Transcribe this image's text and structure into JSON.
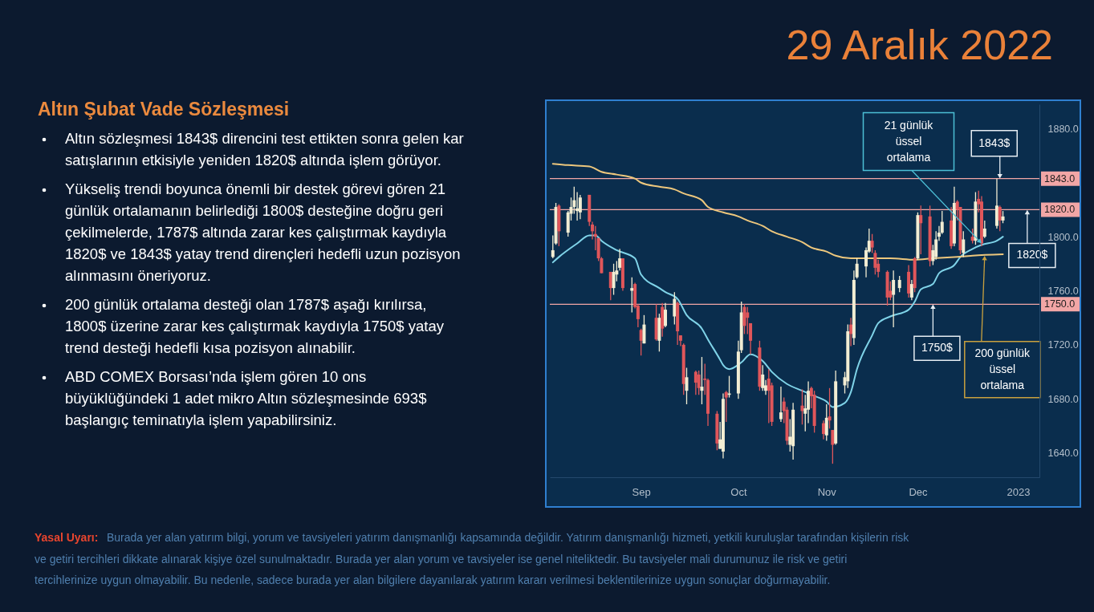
{
  "chart_data": {
    "type": "candlestick",
    "title": "Altın Şubat Vade Sözleşmesi",
    "subtitle": "29 Aralık 2022",
    "x": [
      "2022-08-03",
      "2022-08-04",
      "2022-08-05",
      "2022-08-08",
      "2022-08-09",
      "2022-08-10",
      "2022-08-11",
      "2022-08-12",
      "2022-08-15",
      "2022-08-16",
      "2022-08-17",
      "2022-08-18",
      "2022-08-19",
      "2022-08-22",
      "2022-08-23",
      "2022-08-24",
      "2022-08-25",
      "2022-08-26",
      "2022-08-29",
      "2022-08-30",
      "2022-08-31",
      "2022-09-01",
      "2022-09-02",
      "2022-09-06",
      "2022-09-07",
      "2022-09-08",
      "2022-09-09",
      "2022-09-12",
      "2022-09-13",
      "2022-09-14",
      "2022-09-15",
      "2022-09-16",
      "2022-09-19",
      "2022-09-20",
      "2022-09-21",
      "2022-09-22",
      "2022-09-23",
      "2022-09-26",
      "2022-09-27",
      "2022-09-28",
      "2022-09-29",
      "2022-09-30",
      "2022-10-03",
      "2022-10-04",
      "2022-10-05",
      "2022-10-06",
      "2022-10-07",
      "2022-10-10",
      "2022-10-11",
      "2022-10-12",
      "2022-10-13",
      "2022-10-14",
      "2022-10-17",
      "2022-10-18",
      "2022-10-19",
      "2022-10-20",
      "2022-10-21",
      "2022-10-24",
      "2022-10-25",
      "2022-10-26",
      "2022-10-27",
      "2022-10-28",
      "2022-10-31",
      "2022-11-01",
      "2022-11-02",
      "2022-11-03",
      "2022-11-04",
      "2022-11-07",
      "2022-11-08",
      "2022-11-09",
      "2022-11-10",
      "2022-11-11",
      "2022-11-14",
      "2022-11-15",
      "2022-11-16",
      "2022-11-17",
      "2022-11-18",
      "2022-11-21",
      "2022-11-22",
      "2022-11-23",
      "2022-11-25",
      "2022-11-28",
      "2022-11-29",
      "2022-11-30",
      "2022-12-01",
      "2022-12-02",
      "2022-12-05",
      "2022-12-06",
      "2022-12-07",
      "2022-12-08",
      "2022-12-09",
      "2022-12-12",
      "2022-12-13",
      "2022-12-14",
      "2022-12-15",
      "2022-12-16",
      "2022-12-19",
      "2022-12-20",
      "2022-12-21",
      "2022-12-22",
      "2022-12-23",
      "2022-12-27",
      "2022-12-28",
      "2022-12-29"
    ],
    "ohlc": [
      [
        1785,
        1801,
        1784,
        1790
      ],
      [
        1795,
        1825,
        1794,
        1822
      ],
      [
        1823,
        1824,
        1793,
        1804
      ],
      [
        1803,
        1819,
        1800,
        1818
      ],
      [
        1817,
        1829,
        1812,
        1822
      ],
      [
        1822,
        1837,
        1817,
        1827
      ],
      [
        1819,
        1833,
        1812,
        1821
      ],
      [
        1818,
        1831,
        1813,
        1829
      ],
      [
        1831,
        1831,
        1808,
        1811
      ],
      [
        1809,
        1811,
        1798,
        1804
      ],
      [
        1802,
        1808,
        1790,
        1800
      ],
      [
        1799,
        1799,
        1782,
        1784
      ],
      [
        1784,
        1785,
        1773,
        1773
      ],
      [
        1774,
        1774,
        1753,
        1762
      ],
      [
        1762,
        1780,
        1757,
        1774
      ],
      [
        1772,
        1782,
        1767,
        1775
      ],
      [
        1777,
        1791,
        1775,
        1784
      ],
      [
        1784,
        1784,
        1760,
        1762
      ],
      [
        1760,
        1770,
        1744,
        1762
      ],
      [
        1765,
        1766,
        1747,
        1748
      ],
      [
        1749,
        1750,
        1733,
        1739
      ],
      [
        1731,
        1732,
        1712,
        1723
      ],
      [
        1721,
        1742,
        1721,
        1735
      ],
      [
        1740,
        1750,
        1723,
        1724
      ],
      [
        1723,
        1743,
        1715,
        1740
      ],
      [
        1748,
        1751,
        1726,
        1732
      ],
      [
        1734,
        1751,
        1733,
        1746
      ],
      [
        1741,
        1759,
        1735,
        1754
      ],
      [
        1751,
        1752,
        1720,
        1730
      ],
      [
        1727,
        1727,
        1719,
        1723
      ],
      [
        1720,
        1721,
        1683,
        1691
      ],
      [
        1686,
        1703,
        1676,
        1696
      ],
      [
        1700,
        1701,
        1683,
        1692
      ],
      [
        1698,
        1701,
        1683,
        1688
      ],
      [
        1686,
        1711,
        1676,
        1689
      ],
      [
        1695,
        1706,
        1683,
        1694
      ],
      [
        1694,
        1695,
        1660,
        1669
      ],
      [
        1669,
        1671,
        1642,
        1647
      ],
      [
        1643,
        1663,
        1643,
        1650
      ],
      [
        1641,
        1684,
        1636,
        1680
      ],
      [
        1685,
        1686,
        1663,
        1681
      ],
      [
        1683,
        1697,
        1681,
        1684
      ],
      [
        1684,
        1723,
        1680,
        1715
      ],
      [
        1716,
        1752,
        1714,
        1744
      ],
      [
        1748,
        1750,
        1728,
        1734
      ],
      [
        1744,
        1748,
        1728,
        1740
      ],
      [
        1736,
        1736,
        1713,
        1723
      ],
      [
        1718,
        1723,
        1686,
        1689
      ],
      [
        1688,
        1705,
        1686,
        1698
      ],
      [
        1686,
        1694,
        1683,
        1690
      ],
      [
        1695,
        1702,
        1662,
        1686
      ],
      [
        1690,
        1692,
        1660,
        1663
      ],
      [
        1665,
        1689,
        1663,
        1670
      ],
      [
        1678,
        1681,
        1662,
        1671
      ],
      [
        1672,
        1674,
        1646,
        1649
      ],
      [
        1646,
        1665,
        1641,
        1652
      ],
      [
        1645,
        1677,
        1635,
        1672
      ],
      [
        1675,
        1687,
        1661,
        1671
      ],
      [
        1669,
        1683,
        1656,
        1673
      ],
      [
        1672,
        1693,
        1662,
        1686
      ],
      [
        1688,
        1689,
        1673,
        1682
      ],
      [
        1683,
        1686,
        1655,
        1660
      ],
      [
        1662,
        1664,
        1650,
        1654
      ],
      [
        1653,
        1676,
        1649,
        1666
      ],
      [
        1667,
        1688,
        1658,
        1664
      ],
      [
        1657,
        1657,
        1632,
        1646
      ],
      [
        1647,
        1701,
        1646,
        1693
      ],
      [
        1690,
        1700,
        1684,
        1696
      ],
      [
        1693,
        1735,
        1688,
        1730
      ],
      [
        1735,
        1740,
        1719,
        1728
      ],
      [
        1725,
        1775,
        1720,
        1768
      ],
      [
        1770,
        1784,
        1769,
        1780
      ],
      [
        1778,
        1792,
        1770,
        1790
      ],
      [
        1789,
        1806,
        1788,
        1797
      ],
      [
        1797,
        1802,
        1788,
        1792
      ],
      [
        1788,
        1790,
        1772,
        1777
      ],
      [
        1780,
        1783,
        1770,
        1774
      ],
      [
        1774,
        1775,
        1749,
        1755
      ],
      [
        1760,
        1767,
        1753,
        1755
      ],
      [
        1757,
        1775,
        1733,
        1768
      ],
      [
        1762,
        1771,
        1759,
        1768
      ],
      [
        1774,
        1779,
        1755,
        1758
      ],
      [
        1755,
        1768,
        1753,
        1765
      ],
      [
        1784,
        1785,
        1759,
        1762
      ],
      [
        1784,
        1818,
        1783,
        1816
      ],
      [
        1816,
        1823,
        1787,
        1810
      ],
      [
        1815,
        1823,
        1778,
        1782
      ],
      [
        1782,
        1794,
        1779,
        1790
      ],
      [
        1785,
        1804,
        1783,
        1798
      ],
      [
        1800,
        1808,
        1797,
        1803
      ],
      [
        1803,
        1819,
        1802,
        1811
      ],
      [
        1812,
        1822,
        1791,
        1793
      ],
      [
        1795,
        1837,
        1793,
        1825
      ],
      [
        1826,
        1827,
        1812,
        1820
      ],
      [
        1822,
        1822,
        1787,
        1790
      ],
      [
        1788,
        1804,
        1785,
        1798
      ],
      [
        1800,
        1806,
        1795,
        1797
      ],
      [
        1797,
        1833,
        1794,
        1826
      ],
      [
        1828,
        1834,
        1818,
        1824
      ],
      [
        1826,
        1830,
        1793,
        1795
      ],
      [
        1800,
        1812,
        1799,
        1806
      ],
      [
        1808,
        1843,
        1806,
        1823
      ],
      [
        1822,
        1823,
        1804,
        1812
      ],
      [
        1812,
        1819,
        1810,
        1815
      ]
    ],
    "colors": [
      "#f2edd3",
      "#f2edd3",
      "#e0565a",
      "#f2edd3",
      "#f2edd3",
      "#f2edd3",
      "#f2edd3",
      "#f2edd3",
      "#e0565a",
      "#e0565a",
      "#e0565a",
      "#e0565a",
      "#e0565a",
      "#e0565a",
      "#f2edd3",
      "#f2edd3",
      "#f2edd3",
      "#e0565a",
      "#f2edd3",
      "#e0565a",
      "#e0565a",
      "#e0565a",
      "#f2edd3",
      "#e0565a",
      "#f2edd3",
      "#e0565a",
      "#f2edd3",
      "#f2edd3",
      "#e0565a",
      "#e0565a",
      "#e0565a",
      "#f2edd3",
      "#e0565a",
      "#e0565a",
      "#f2edd3",
      "#e0565a",
      "#e0565a",
      "#e0565a",
      "#f2edd3",
      "#f2edd3",
      "#e0565a",
      "#f2edd3",
      "#f2edd3",
      "#f2edd3",
      "#e0565a",
      "#e0565a",
      "#e0565a",
      "#e0565a",
      "#f2edd3",
      "#f2edd3",
      "#e0565a",
      "#e0565a",
      "#f2edd3",
      "#e0565a",
      "#e0565a",
      "#f2edd3",
      "#f2edd3",
      "#e0565a",
      "#f2edd3",
      "#f2edd3",
      "#e0565a",
      "#e0565a",
      "#e0565a",
      "#f2edd3",
      "#e0565a",
      "#e0565a",
      "#f2edd3",
      "#f2edd3",
      "#f2edd3",
      "#e0565a",
      "#f2edd3",
      "#f2edd3",
      "#f2edd3",
      "#f2edd3",
      "#e0565a",
      "#e0565a",
      "#e0565a",
      "#e0565a",
      "#e0565a",
      "#f2edd3",
      "#f2edd3",
      "#e0565a",
      "#f2edd3",
      "#e0565a",
      "#f2edd3",
      "#e0565a",
      "#e0565a",
      "#f2edd3",
      "#f2edd3",
      "#f2edd3",
      "#f2edd3",
      "#e0565a",
      "#f2edd3",
      "#e0565a",
      "#e0565a",
      "#f2edd3",
      "#e0565a",
      "#f2edd3",
      "#e0565a",
      "#e0565a",
      "#f2edd3",
      "#f2edd3",
      "#e0565a",
      "#f2edd3"
    ],
    "series": [
      {
        "type": "line",
        "color": "#7fd3e8",
        "x": [
          "2022-08-03",
          "2022-08-05",
          "2022-08-11",
          "2022-08-15",
          "2022-08-17",
          "2022-08-19",
          "2022-08-24",
          "2022-08-30",
          "2022-09-01",
          "2022-09-07",
          "2022-09-09",
          "2022-09-13",
          "2022-09-16",
          "2022-09-21",
          "2022-09-23",
          "2022-09-27",
          "2022-09-28",
          "2022-09-30",
          "2022-10-04",
          "2022-10-07",
          "2022-10-11",
          "2022-10-14",
          "2022-10-19",
          "2022-10-24",
          "2022-10-27",
          "2022-11-01",
          "2022-11-03",
          "2022-11-07",
          "2022-11-09",
          "2022-11-11",
          "2022-11-16",
          "2022-11-18",
          "2022-11-22",
          "2022-11-28",
          "2022-11-30",
          "2022-12-02",
          "2022-12-06",
          "2022-12-08",
          "2022-12-13",
          "2022-12-15",
          "2022-12-19",
          "2022-12-22",
          "2022-12-27",
          "2022-12-29"
        ],
        "values": [
          1781,
          1785,
          1795,
          1801,
          1801,
          1797,
          1790,
          1784,
          1772,
          1762,
          1759,
          1754,
          1742,
          1732,
          1724,
          1709,
          1705,
          1702,
          1707,
          1713,
          1708,
          1700,
          1691,
          1686,
          1683,
          1678,
          1674,
          1677,
          1685,
          1702,
          1727,
          1736,
          1741,
          1746,
          1752,
          1761,
          1765,
          1773,
          1779,
          1785,
          1791,
          1794,
          1797,
          1800
        ]
      },
      {
        "type": "line",
        "color": "#edc77d",
        "x": [
          "2022-08-03",
          "2022-08-08",
          "2022-08-15",
          "2022-08-19",
          "2022-08-24",
          "2022-08-30",
          "2022-09-01",
          "2022-09-07",
          "2022-09-12",
          "2022-09-15",
          "2022-09-21",
          "2022-09-23",
          "2022-09-28",
          "2022-10-03",
          "2022-10-06",
          "2022-10-11",
          "2022-10-14",
          "2022-10-19",
          "2022-10-24",
          "2022-10-27",
          "2022-11-01",
          "2022-11-04",
          "2022-11-09",
          "2022-11-14",
          "2022-11-22",
          "2022-11-30",
          "2022-12-06",
          "2022-12-13",
          "2022-12-19",
          "2022-12-29"
        ],
        "values": [
          1854,
          1853,
          1852,
          1848,
          1846,
          1843,
          1840,
          1837,
          1835,
          1832,
          1827,
          1822,
          1818,
          1815,
          1812,
          1808,
          1804,
          1800,
          1796,
          1792,
          1789,
          1786,
          1784,
          1784,
          1784,
          1783,
          1784,
          1785,
          1786,
          1787
        ]
      }
    ],
    "xlim": [
      "2022-08-02",
      "2023-01-10"
    ],
    "xticks": [
      {
        "value": "2022-09-01",
        "label": "Sep"
      },
      {
        "value": "2022-10-03",
        "label": "Oct"
      },
      {
        "value": "2022-11-01",
        "label": "Nov"
      },
      {
        "value": "2022-12-01",
        "label": "Dec"
      },
      {
        "value": "2023-01-03",
        "label": "2023"
      }
    ],
    "ylim": [
      1622,
      1898
    ],
    "yticks": [
      {
        "value": 1640,
        "label": "1640.0"
      },
      {
        "value": 1680,
        "label": "1680.0"
      },
      {
        "value": 1720,
        "label": "1720.0"
      },
      {
        "value": 1760,
        "label": "1760.0"
      },
      {
        "value": 1800,
        "label": "1800.0"
      },
      {
        "value": 1880,
        "label": "1880.0"
      }
    ],
    "ref_lines": [
      {
        "axis": "y",
        "value": 1843,
        "label": "1843.0",
        "color": "#f2a6a6"
      },
      {
        "axis": "y",
        "value": 1820,
        "label": "1820.0",
        "color": "#f2a6a6"
      },
      {
        "axis": "y",
        "value": 1750,
        "label": "1750.0",
        "color": "#f2a6a6"
      }
    ],
    "annotations": [
      "Altın sözleşmesi 1843$ direncini test ettikten sonra gelen kar satışlarının etkisiyle yeniden 1820$ altında işlem görüyor.",
      "Yükseliş trendi boyunca önemli bir destek görevi gören 21 günlük ortalamanın belirlediği 1800$ desteğine doğru geri çekilmelerde, 1787$ altında zarar kes çalıştırmak kaydıyla 1820$ ve 1843$ yatay trend dirençleri hedefli uzun pozisyon alınmasını öneriyoruz.",
      "200 günlük ortalama desteği olan 1787$ aşağı kırılırsa, 1800$ üzerine zarar kes çalıştırmak kaydıyla 1750$ yatay trend desteği hedefli kısa pozisyon alınabilir.",
      "ABD COMEX Borsası’nda işlem gören 10 ons büyüklüğündeki 1 adet mikro Altın sözleşmesinde 693$ başlangıç teminatıyla işlem yapabilirsiniz.",
      {
        "text": "21 günlük üssel ortalama",
        "x": "2022-12-22",
        "y": 1795
      },
      {
        "text": "1843$",
        "x": "2022-12-28",
        "y": 1843
      },
      {
        "text": "1820$",
        "x": "2023-01-06",
        "y": 1820
      },
      {
        "text": "1750$",
        "x": "2022-12-06",
        "y": 1750
      },
      {
        "text": "200 günlük üssel ortalama",
        "x": "2022-12-23",
        "y": 1786
      },
      "Yasal Uyarı: Burada yer alan yatırım bilgi, yorum ve tavsiyeleri yatırım danışmanlığı kapsamında değildir. Yatırım danışmanlığı hizmeti, yetkili kuruluşlar tarafından kişilerin risk ve getiri tercihleri dikkate alınarak kişiye özel sunulmaktadır. Burada yer alan yorum ve tavsiyeler ise genel niteliktedir. Bu tavsiyeler mali durumunuz ile risk ve getiri tercihlerinize uygun olmayabilir. Bu nedenle, sadece burada yer alan bilgilere dayanılarak yatırım kararı verilmesi beklentilerinize uygun sonuçlar doğurmayabilir."
    ]
  }
}
